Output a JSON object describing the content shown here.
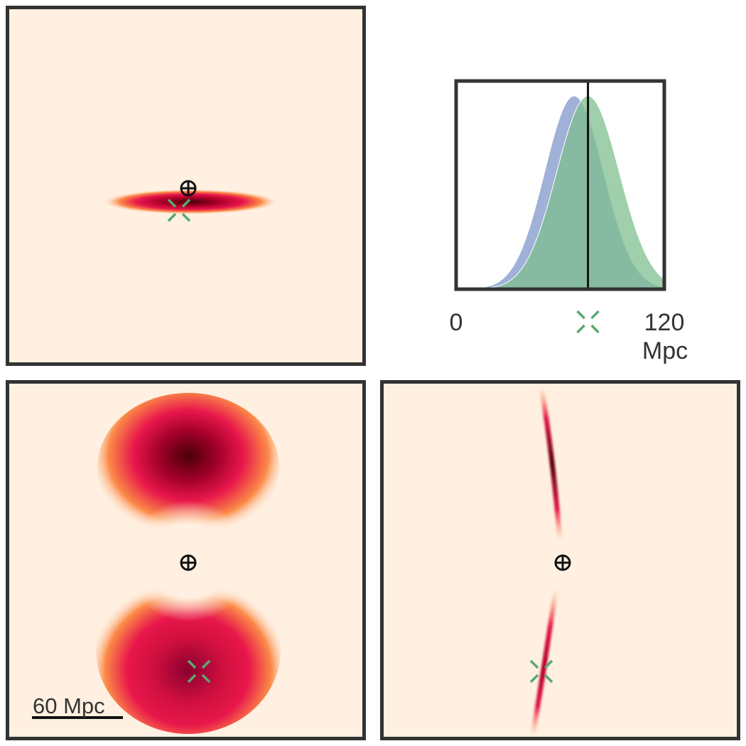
{
  "colors": {
    "background": "#fff0e1",
    "frame": "#333333",
    "density_low": "#fdae61",
    "density_mid": "#e8174b",
    "density_high": "#4a0008",
    "series_blue": "#8fa3d1",
    "series_green": "#7fbf8f",
    "overlap": "#7aab98",
    "marker_green": "#5aa870",
    "earth_marker": "#111111"
  },
  "icons": {
    "observer": "earth-symbol-icon",
    "source": "green-cross-marker-icon"
  },
  "scale_bar": {
    "label": "60 Mpc",
    "length_mpc": 60
  },
  "chart_data": [
    {
      "type": "heatmap",
      "panel": "top-left",
      "title": "",
      "xlabel": "",
      "ylabel": "",
      "grid": false,
      "description_fields": {
        "shape": "thin horizontal ellipse"
      },
      "observer_marker": true,
      "source_marker": true
    },
    {
      "type": "area",
      "panel": "top-right",
      "title": "",
      "xlabel": "Mpc",
      "ylabel": "",
      "xlim": [
        0,
        120
      ],
      "x_ticks": [
        0,
        120
      ],
      "x_tick_labels": [
        "0",
        "120"
      ],
      "grid": false,
      "vertical_line_x": 76,
      "source_marker_x": 76,
      "series": [
        {
          "color": "#8fa3d1",
          "mean": 68,
          "sd": 17
        },
        {
          "color": "#7fbf8f",
          "mean": 76,
          "sd": 18
        }
      ]
    },
    {
      "type": "heatmap",
      "panel": "bottom-left",
      "title": "",
      "xlabel": "",
      "ylabel": "",
      "grid": false,
      "description_fields": {
        "shape": "two lobes above and below observer"
      },
      "observer_marker": true,
      "source_marker": true
    },
    {
      "type": "heatmap",
      "panel": "bottom-right",
      "title": "",
      "xlabel": "",
      "ylabel": "",
      "grid": false,
      "description_fields": {
        "shape": "thin near-vertical arc"
      },
      "observer_marker": true,
      "source_marker": true
    }
  ]
}
